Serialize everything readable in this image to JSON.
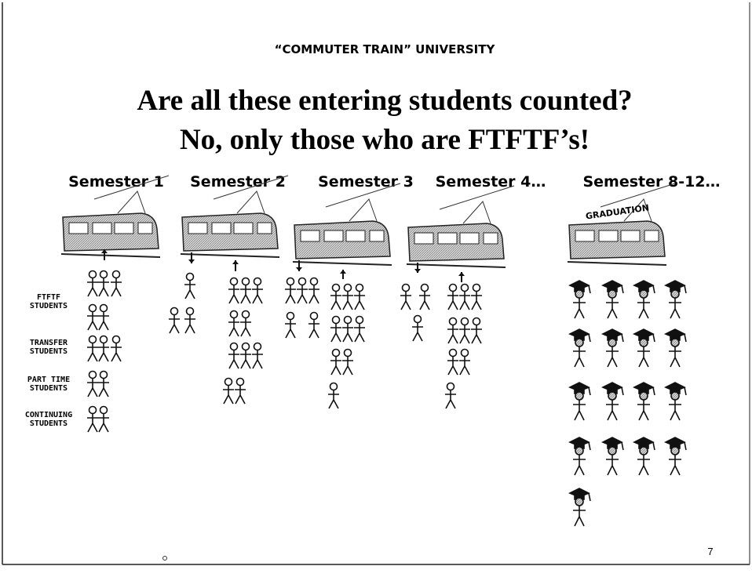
{
  "header": "“COMMUTER TRAIN” UNIVERSITY",
  "title": {
    "line1": "Are all these entering students counted?",
    "line2": "No, only those who are FTFTF’s!"
  },
  "semesters": [
    "Semester 1",
    "Semester 2",
    "Semester 3",
    "Semester 4…",
    "Semester 8-12…"
  ],
  "train_sign": "GRADUATION",
  "student_types": [
    {
      "line1": "FTFTF",
      "line2": "STUDENTS"
    },
    {
      "line1": "TRANSFER",
      "line2": "STUDENTS"
    },
    {
      "line1": "PART TIME",
      "line2": "STUDENTS"
    },
    {
      "line1": "CONTINUING",
      "line2": "STUDENTS"
    }
  ],
  "page_number": "7"
}
